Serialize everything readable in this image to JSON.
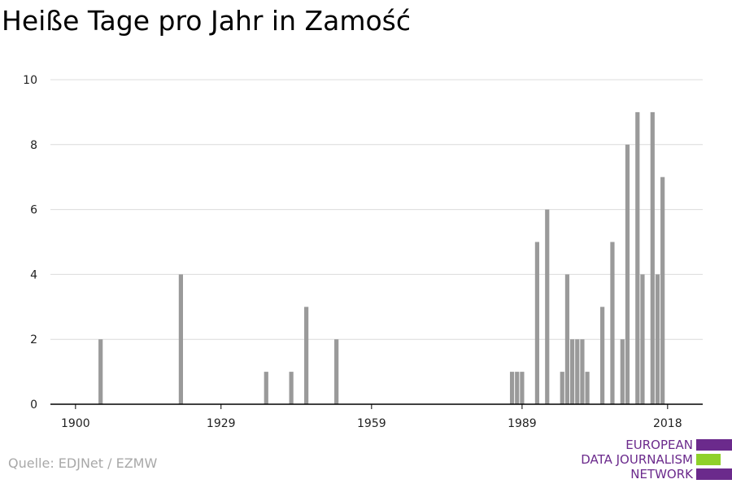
{
  "title": "Heiße Tage pro Jahr in Zamość",
  "source": "Quelle: EDJNet / EZMW",
  "logo": {
    "lines": [
      "EUROPEAN",
      "DATA JOURNALISM",
      "NETWORK"
    ],
    "colors": {
      "purple": "#6b2a8c",
      "green": "#8fd12a"
    }
  },
  "chart_data": {
    "type": "bar",
    "title": "Heiße Tage pro Jahr in Zamość",
    "xlabel": "",
    "ylabel": "",
    "xlim": [
      1895,
      2025
    ],
    "ylim": [
      0,
      10
    ],
    "x_ticks": [
      1900,
      1929,
      1959,
      1989,
      2018
    ],
    "y_ticks": [
      0,
      2,
      4,
      6,
      8,
      10
    ],
    "grid": true,
    "bar_color": "#9a9a9a",
    "points": [
      {
        "x": 1905,
        "y": 2
      },
      {
        "x": 1921,
        "y": 4
      },
      {
        "x": 1938,
        "y": 1
      },
      {
        "x": 1943,
        "y": 1
      },
      {
        "x": 1946,
        "y": 3
      },
      {
        "x": 1952,
        "y": 2
      },
      {
        "x": 1987,
        "y": 1
      },
      {
        "x": 1988,
        "y": 1
      },
      {
        "x": 1989,
        "y": 1
      },
      {
        "x": 1992,
        "y": 5
      },
      {
        "x": 1994,
        "y": 6
      },
      {
        "x": 1997,
        "y": 1
      },
      {
        "x": 1998,
        "y": 4
      },
      {
        "x": 1999,
        "y": 2
      },
      {
        "x": 2000,
        "y": 2
      },
      {
        "x": 2001,
        "y": 2
      },
      {
        "x": 2002,
        "y": 1
      },
      {
        "x": 2005,
        "y": 3
      },
      {
        "x": 2007,
        "y": 5
      },
      {
        "x": 2009,
        "y": 2
      },
      {
        "x": 2010,
        "y": 8
      },
      {
        "x": 2012,
        "y": 9
      },
      {
        "x": 2013,
        "y": 4
      },
      {
        "x": 2015,
        "y": 9
      },
      {
        "x": 2016,
        "y": 4
      },
      {
        "x": 2017,
        "y": 7
      }
    ]
  }
}
